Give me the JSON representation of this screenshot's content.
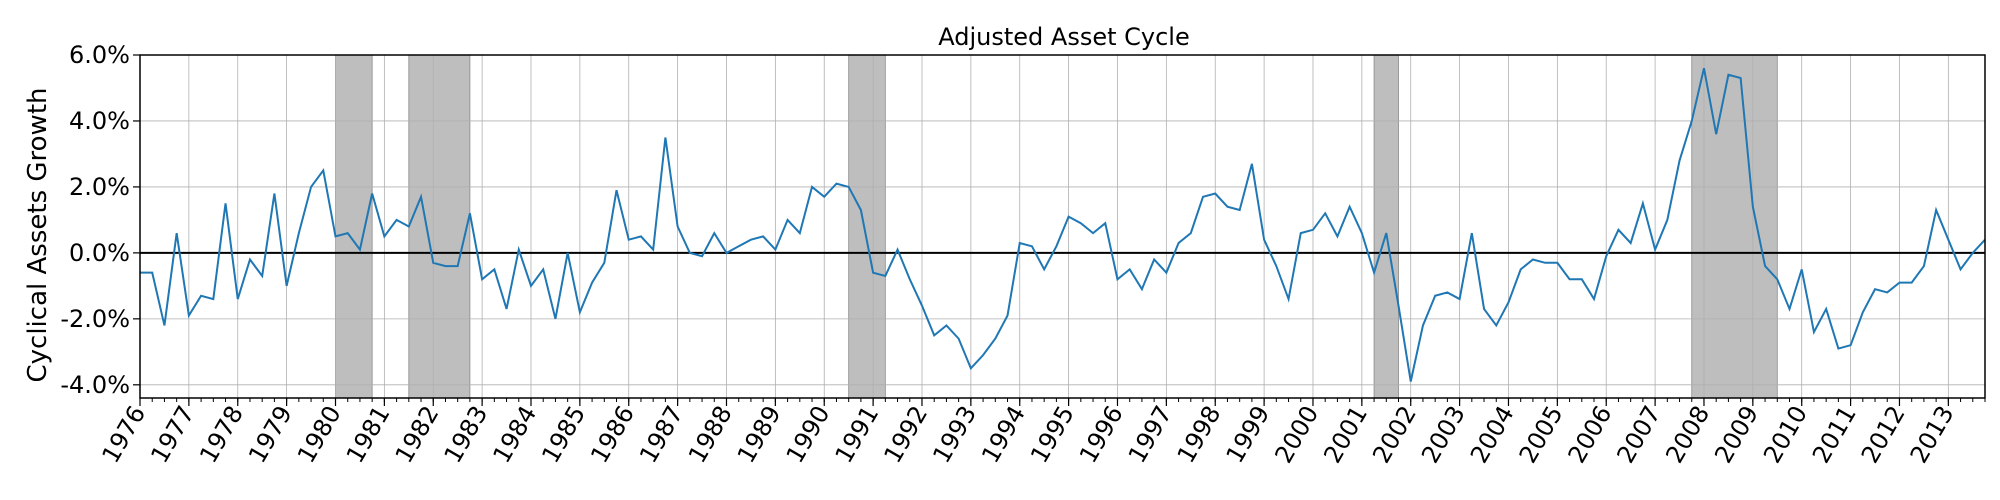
{
  "chart_data": {
    "type": "line",
    "title": "Adjusted Asset Cycle",
    "xlabel": "",
    "ylabel": "Cyclical Assets Growth",
    "ylim": [
      -4.4,
      6.0
    ],
    "yticks": [
      -4,
      -2,
      0,
      2,
      4,
      6
    ],
    "ytick_labels": [
      "-4.0%",
      "-2.0%",
      "0.0%",
      "2.0%",
      "4.0%",
      "6.0%"
    ],
    "xlim": [
      1976.0,
      2013.75
    ],
    "xtick_labels": [
      "1976",
      "1977",
      "1978",
      "1979",
      "1980",
      "1981",
      "1982",
      "1983",
      "1984",
      "1985",
      "1986",
      "1987",
      "1988",
      "1989",
      "1990",
      "1991",
      "1992",
      "1993",
      "1994",
      "1995",
      "1996",
      "1997",
      "1998",
      "1999",
      "2000",
      "2001",
      "2002",
      "2003",
      "2004",
      "2005",
      "2006",
      "2007",
      "2008",
      "2009",
      "2010",
      "2011",
      "2012",
      "2013"
    ],
    "grid": true,
    "zero_line": true,
    "line_color": "#1f77b4",
    "recession_color": "#bebebe",
    "recessions": [
      [
        1980.0,
        1980.75
      ],
      [
        1981.5,
        1982.75
      ],
      [
        1990.5,
        1991.25
      ],
      [
        2001.25,
        2001.75
      ],
      [
        2007.75,
        2009.5
      ]
    ],
    "series": [
      {
        "name": "Cyclical Assets Growth",
        "start": 1976.0,
        "step": 0.25,
        "values": [
          -0.6,
          -0.6,
          -2.2,
          0.6,
          -1.9,
          -1.3,
          -1.4,
          1.5,
          -1.4,
          -0.2,
          -0.7,
          1.8,
          -1.0,
          0.6,
          2.0,
          2.5,
          0.5,
          0.6,
          0.1,
          1.8,
          0.5,
          1.0,
          0.8,
          1.7,
          -0.3,
          -0.4,
          -0.4,
          1.2,
          -0.8,
          -0.5,
          -1.7,
          0.1,
          -1.0,
          -0.5,
          -2.0,
          0.0,
          -1.8,
          -0.9,
          -0.3,
          1.9,
          0.4,
          0.5,
          0.1,
          3.5,
          0.8,
          0.0,
          -0.1,
          0.6,
          0.0,
          0.2,
          0.4,
          0.5,
          0.1,
          1.0,
          0.6,
          2.0,
          1.7,
          2.1,
          2.0,
          1.3,
          -0.6,
          -0.7,
          0.1,
          -0.8,
          -1.6,
          -2.5,
          -2.2,
          -2.6,
          -3.5,
          -3.1,
          -2.6,
          -1.9,
          0.3,
          0.2,
          -0.5,
          0.2,
          1.1,
          0.9,
          0.6,
          0.9,
          -0.8,
          -0.5,
          -1.1,
          -0.2,
          -0.6,
          0.3,
          0.6,
          1.7,
          1.8,
          1.4,
          1.3,
          2.7,
          0.4,
          -0.4,
          -1.4,
          0.6,
          0.7,
          1.2,
          0.5,
          1.4,
          0.6,
          -0.6,
          0.6,
          -1.6,
          -3.9,
          -2.2,
          -1.3,
          -1.2,
          -1.4,
          0.6,
          -1.7,
          -2.2,
          -1.5,
          -0.5,
          -0.2,
          -0.3,
          -0.3,
          -0.8,
          -0.8,
          -1.4,
          -0.1,
          0.7,
          0.3,
          1.5,
          0.1,
          1.0,
          2.8,
          4.0,
          5.6,
          3.6,
          5.4,
          5.3,
          1.4,
          -0.4,
          -0.8,
          -1.7,
          -0.5,
          -2.4,
          -1.7,
          -2.9,
          -2.8,
          -1.8,
          -1.1,
          -1.2,
          -0.9,
          -0.9,
          -0.4,
          1.3,
          0.4,
          -0.5,
          0.0,
          0.4
        ]
      }
    ]
  }
}
